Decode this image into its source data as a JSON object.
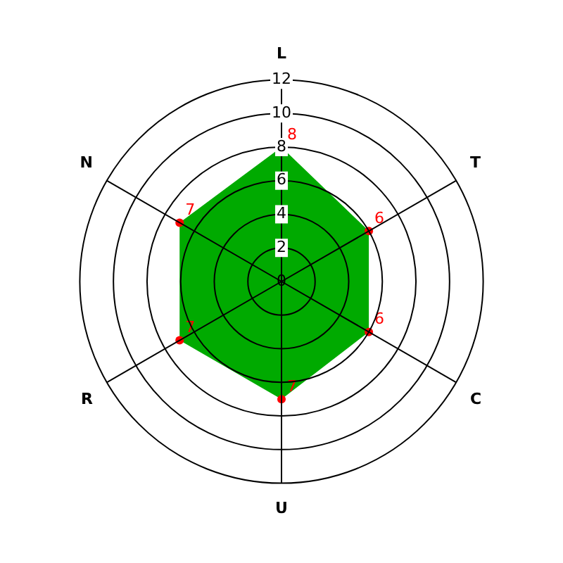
{
  "chart_data": {
    "type": "radar",
    "categories": [
      "L",
      "T",
      "C",
      "U",
      "R",
      "N"
    ],
    "series": [
      {
        "color": "#00aa00",
        "values": [
          8,
          6,
          6,
          7,
          7,
          7
        ]
      }
    ],
    "ylim": [
      0,
      12
    ],
    "yticks": [
      0,
      2,
      4,
      6,
      8,
      10,
      12
    ],
    "grid": true,
    "marker": "circle",
    "data_labels": true
  }
}
